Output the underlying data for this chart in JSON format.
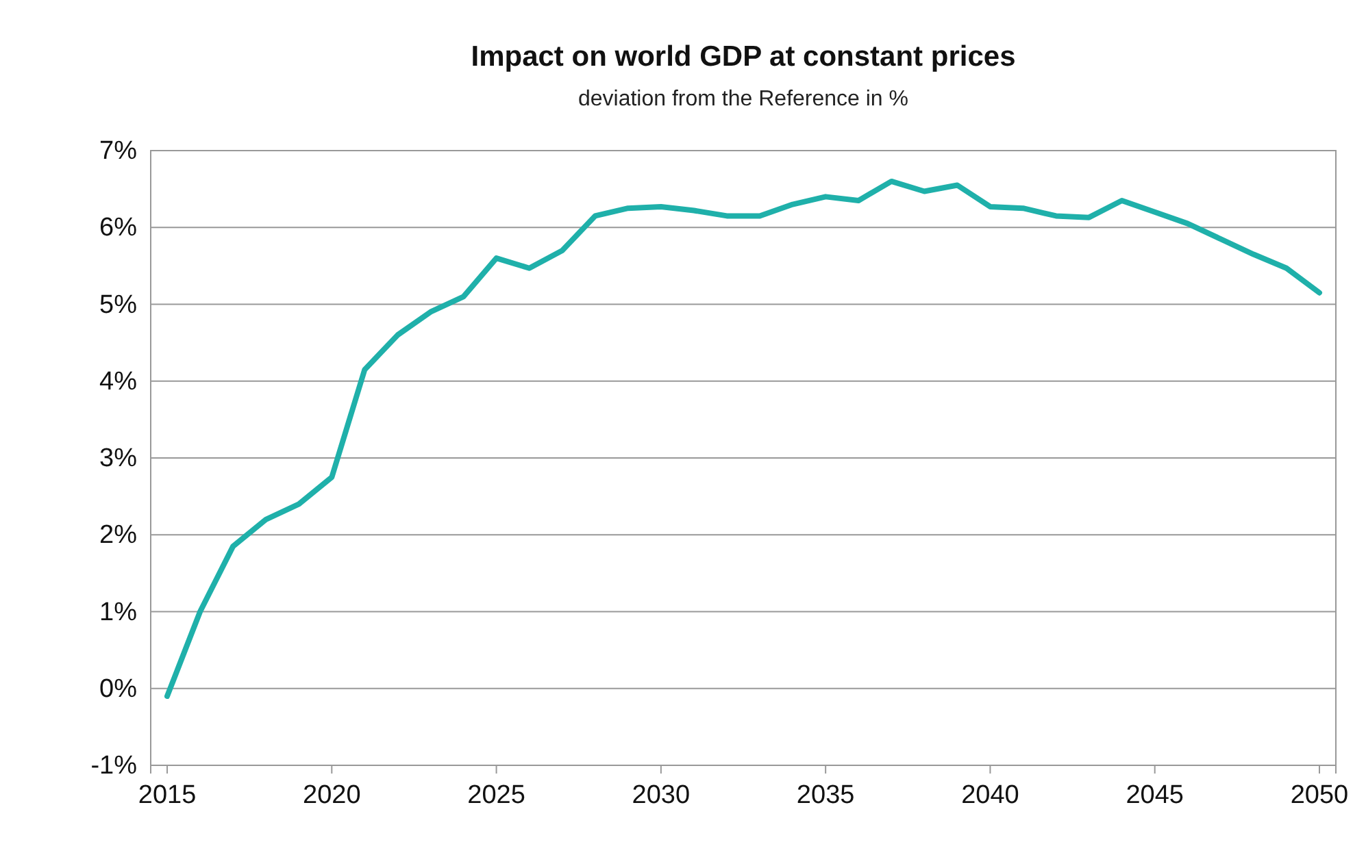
{
  "chart_data": {
    "type": "line",
    "title": "Impact on world GDP at constant prices",
    "subtitle": "deviation from the Reference in %",
    "x": [
      2015,
      2016,
      2017,
      2018,
      2019,
      2020,
      2021,
      2022,
      2023,
      2024,
      2025,
      2026,
      2027,
      2028,
      2029,
      2030,
      2031,
      2032,
      2033,
      2034,
      2035,
      2036,
      2037,
      2038,
      2039,
      2040,
      2041,
      2042,
      2043,
      2044,
      2045,
      2046,
      2047,
      2048,
      2049,
      2050
    ],
    "series": [
      {
        "color": "#1fb0aa",
        "values": [
          -0.1,
          1.0,
          1.85,
          2.2,
          2.4,
          2.75,
          4.15,
          4.6,
          4.9,
          5.1,
          5.6,
          5.47,
          5.7,
          6.15,
          6.25,
          6.27,
          6.22,
          6.15,
          6.15,
          6.3,
          6.4,
          6.35,
          6.6,
          6.47,
          6.55,
          6.27,
          6.25,
          6.15,
          6.13,
          6.35,
          6.2,
          6.05,
          5.85,
          5.65,
          5.47,
          5.15
        ]
      }
    ],
    "xlim": [
      2014.5,
      2050.5
    ],
    "xticks": [
      2015,
      2020,
      2025,
      2030,
      2035,
      2040,
      2045,
      2050
    ],
    "ylim": [
      -1,
      7
    ],
    "yticks": [
      {
        "value": -1,
        "label": "-1%"
      },
      {
        "value": 0,
        "label": "0%"
      },
      {
        "value": 1,
        "label": "1%"
      },
      {
        "value": 2,
        "label": "2%"
      },
      {
        "value": 3,
        "label": "3%"
      },
      {
        "value": 4,
        "label": "4%"
      },
      {
        "value": 5,
        "label": "5%"
      },
      {
        "value": 6,
        "label": "6%"
      },
      {
        "value": 7,
        "label": "7%"
      }
    ],
    "grid": "y",
    "marker": "none",
    "line_style": "solid"
  }
}
